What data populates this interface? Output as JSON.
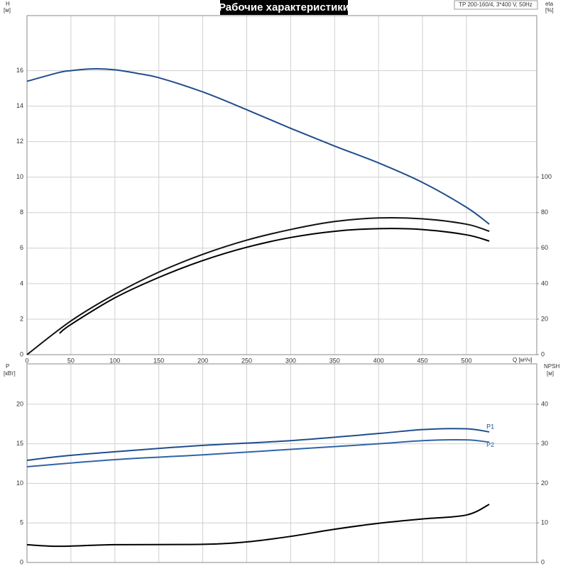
{
  "title": "Рабочие характеристики",
  "model": "TP 200-160/4, 3*400 V, 50Hz",
  "chart_data": [
    {
      "type": "line",
      "y_label": "H",
      "y_unit": "[м]",
      "y2_label": "eta",
      "y2_unit": "[%]",
      "x_label": "Q [м³/ч]",
      "xlim": [
        0,
        580
      ],
      "xticks": [
        0,
        50,
        100,
        150,
        200,
        250,
        300,
        350,
        400,
        450,
        500
      ],
      "ylim": [
        0,
        19.1
      ],
      "yticks": [
        0,
        2,
        4,
        6,
        8,
        10,
        12,
        14,
        16
      ],
      "y2lim": [
        0,
        191
      ],
      "y2ticks": [
        0,
        20,
        40,
        60,
        80,
        100
      ],
      "grid": true,
      "series": [
        {
          "color": "#1f4e8c",
          "x": [
            0,
            37,
            50,
            75,
            100,
            125,
            150,
            200,
            250,
            300,
            350,
            400,
            450,
            500,
            526
          ],
          "values": [
            15.4,
            15.9,
            16.0,
            16.1,
            16.05,
            15.85,
            15.6,
            14.8,
            13.8,
            12.75,
            11.75,
            10.8,
            9.7,
            8.3,
            7.35
          ]
        },
        {
          "color": "#111111",
          "axis": "y2",
          "x": [
            0,
            50,
            100,
            150,
            200,
            250,
            300,
            350,
            400,
            450,
            500,
            526
          ],
          "values": [
            0,
            19,
            34,
            46.5,
            56.5,
            64.5,
            70.5,
            75,
            77,
            76.5,
            73.5,
            69.5
          ]
        },
        {
          "color": "#000000",
          "axis": "y2",
          "x": [
            37,
            50,
            100,
            150,
            200,
            250,
            300,
            350,
            400,
            450,
            500,
            526
          ],
          "values": [
            12,
            17,
            32,
            43.5,
            53,
            60.5,
            66,
            69.5,
            71,
            70.5,
            67.5,
            64
          ]
        }
      ]
    },
    {
      "type": "line",
      "y_label": "P",
      "y_unit": "[кВт]",
      "y2_label": "NPSH",
      "y2_unit": "[м]",
      "xlim": [
        0,
        580
      ],
      "ylim": [
        0,
        25.1
      ],
      "yticks": [
        0,
        5,
        10,
        15,
        20
      ],
      "y2lim": [
        0,
        50.2
      ],
      "y2ticks": [
        0,
        10,
        20,
        30,
        40
      ],
      "grid": true,
      "series": [
        {
          "name": "P1",
          "color": "#1f4e8c",
          "x": [
            0,
            37,
            100,
            200,
            300,
            400,
            450,
            500,
            526
          ],
          "values": [
            12.9,
            13.4,
            14.0,
            14.8,
            15.4,
            16.3,
            16.8,
            16.9,
            16.5
          ]
        },
        {
          "name": "P2",
          "color": "#2f64a8",
          "x": [
            0,
            100,
            200,
            300,
            400,
            450,
            500,
            526
          ],
          "values": [
            12.1,
            13.0,
            13.6,
            14.3,
            15.0,
            15.4,
            15.5,
            15.2
          ]
        },
        {
          "color": "#000000",
          "axis": "y2",
          "x": [
            0,
            37,
            100,
            200,
            250,
            300,
            350,
            400,
            450,
            500,
            526
          ],
          "values": [
            4.5,
            4.1,
            4.5,
            4.6,
            5.2,
            6.6,
            8.4,
            9.9,
            11,
            12,
            14.7
          ]
        }
      ]
    }
  ]
}
